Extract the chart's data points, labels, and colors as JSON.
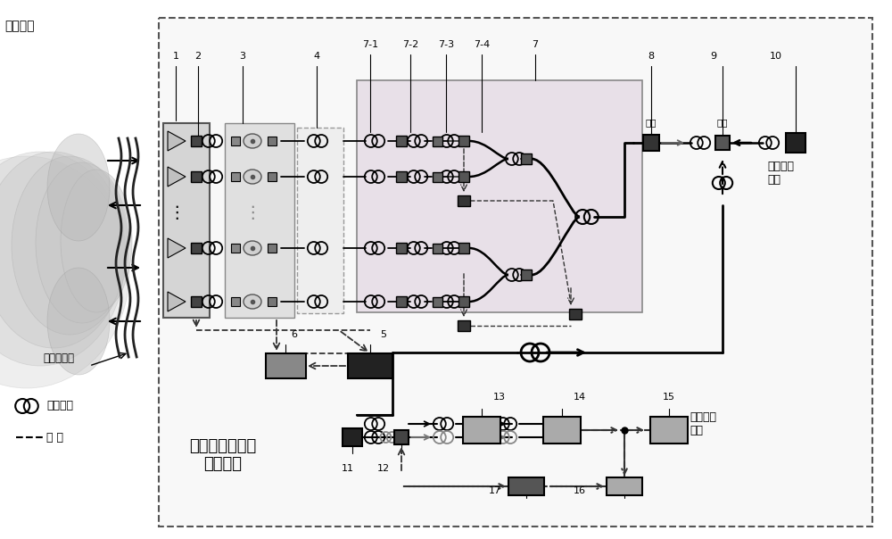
{
  "bg_color": "#ffffff",
  "labels": {
    "atm_channel": "大气信道",
    "wavefront": "信号光波前",
    "fiber_loop": "光纤光路",
    "circuit": "电 路",
    "system_name": "光纤阵列式激光\n收发系统",
    "signal_load": "信号加载\n输入",
    "signal_demod": "信号解调\n输出",
    "front_end": "前端",
    "back_end": "后端"
  },
  "component_labels": [
    [
      "1",
      197,
      68
    ],
    [
      "2",
      222,
      68
    ],
    [
      "3",
      272,
      68
    ],
    [
      "4",
      355,
      68
    ],
    [
      "7-1",
      415,
      55
    ],
    [
      "7-2",
      460,
      55
    ],
    [
      "7-3",
      500,
      55
    ],
    [
      "7-4",
      540,
      55
    ],
    [
      "7",
      600,
      55
    ],
    [
      "8",
      730,
      68
    ],
    [
      "9",
      800,
      68
    ],
    [
      "10",
      870,
      68
    ],
    [
      "5",
      430,
      380
    ],
    [
      "6",
      330,
      380
    ],
    [
      "11",
      390,
      530
    ],
    [
      "12",
      430,
      530
    ],
    [
      "13",
      560,
      450
    ],
    [
      "14",
      650,
      450
    ],
    [
      "15",
      750,
      450
    ],
    [
      "16",
      650,
      555
    ],
    [
      "17",
      555,
      555
    ]
  ]
}
